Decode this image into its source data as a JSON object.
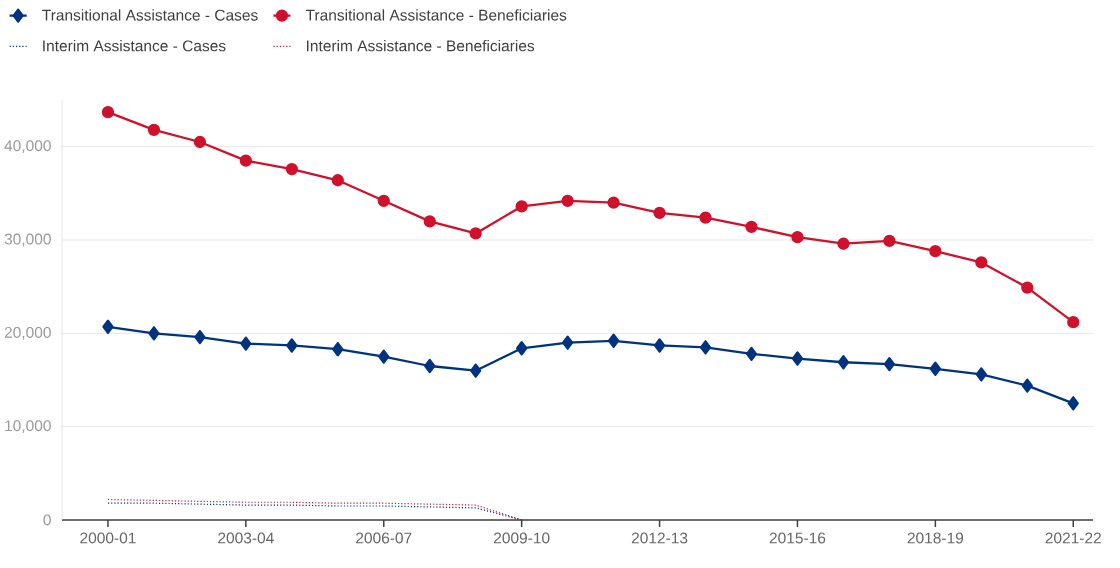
{
  "chart_data": {
    "type": "line",
    "categories": [
      "2000-01",
      null,
      null,
      "2003-04",
      null,
      null,
      "2006-07",
      null,
      null,
      "2009-10",
      null,
      null,
      "2012-13",
      null,
      null,
      "2015-16",
      null,
      null,
      "2018-19",
      null,
      null,
      "2021-22"
    ],
    "series": [
      {
        "name": "Transitional Assistance - Cases",
        "color": "#00337f",
        "marker": "diamond",
        "line_style": "solid",
        "values": [
          20700,
          20000,
          19600,
          18900,
          18700,
          18300,
          17500,
          16500,
          16000,
          18400,
          19000,
          19200,
          18700,
          18500,
          17800,
          17300,
          16900,
          16700,
          16200,
          15600,
          14400,
          12500
        ]
      },
      {
        "name": "Transitional Assistance - Beneficiaries",
        "color": "#d0112b",
        "marker": "circle",
        "line_style": "solid",
        "values": [
          43700,
          41800,
          40500,
          38500,
          37600,
          36400,
          34200,
          32000,
          30700,
          33600,
          34200,
          34000,
          32900,
          32400,
          31400,
          30300,
          29600,
          29900,
          28800,
          27600,
          24900,
          21200
        ]
      },
      {
        "name": "Interim Assistance - Cases",
        "color": "#00337f",
        "marker": "none",
        "line_style": "dotted",
        "values": [
          1800,
          1800,
          1700,
          1600,
          1600,
          1500,
          1500,
          1400,
          1300,
          0,
          null,
          null,
          null,
          null,
          null,
          null,
          null,
          null,
          null,
          null,
          null,
          null
        ]
      },
      {
        "name": "Interim Assistance - Beneficiaries",
        "color": "#d0112b",
        "marker": "none",
        "line_style": "dotted",
        "values": [
          2200,
          2100,
          2000,
          1900,
          1900,
          1800,
          1800,
          1700,
          1600,
          0,
          null,
          null,
          null,
          null,
          null,
          null,
          null,
          null,
          null,
          null,
          null,
          null
        ]
      }
    ],
    "ylim": [
      0,
      45000
    ],
    "yticks": [
      0,
      {
        "value": 10000,
        "label": "10,000"
      },
      {
        "value": 20000,
        "label": "20,000"
      },
      {
        "value": 30000,
        "label": "30,000"
      },
      {
        "value": 40000,
        "label": "40,000"
      }
    ],
    "grid": "y",
    "legend": "top"
  }
}
